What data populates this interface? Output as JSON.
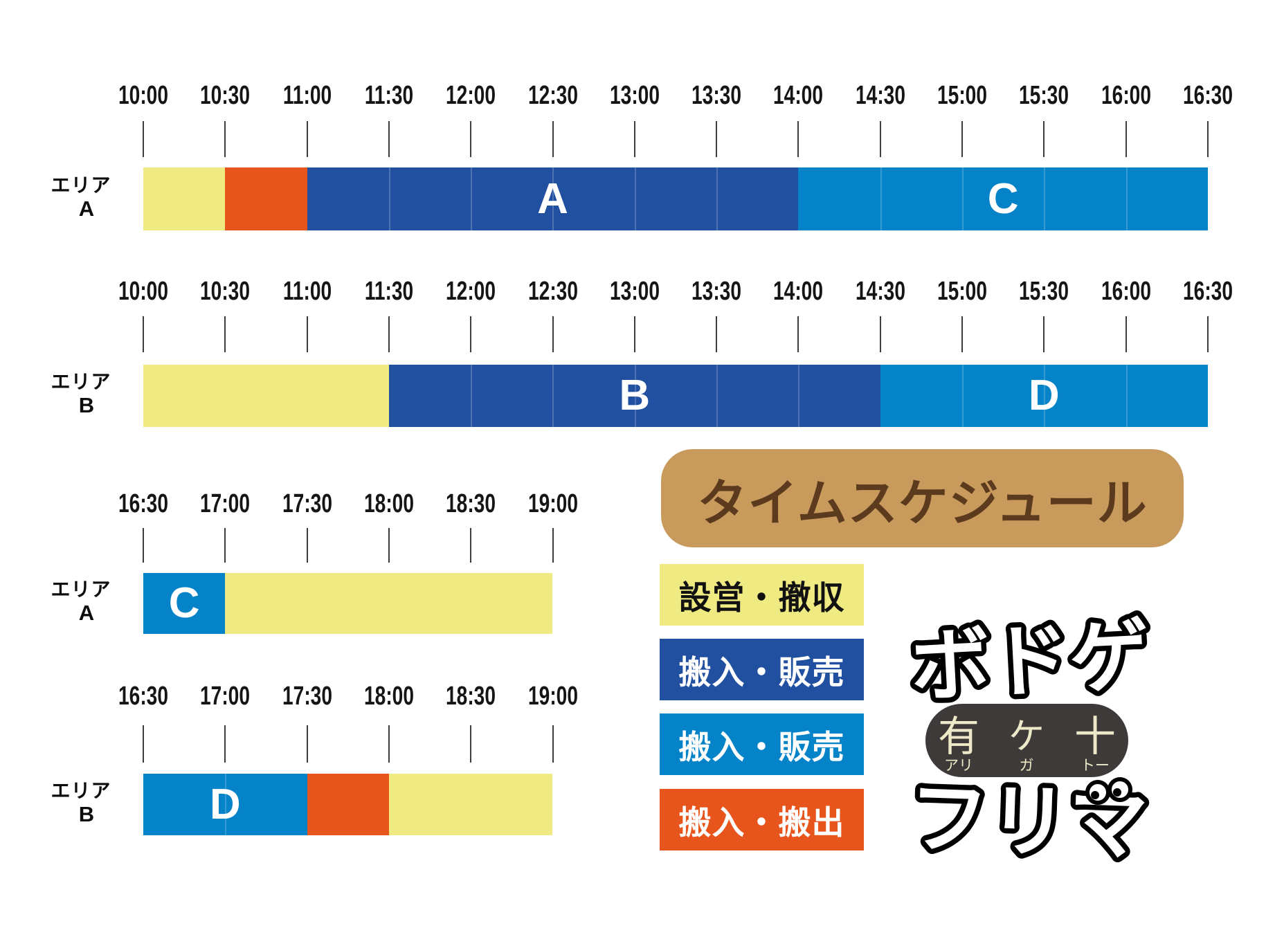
{
  "title": {
    "text": "タイムスケジュール",
    "box_color": "#C89B5D",
    "text_color": "#5C3A1D"
  },
  "colors": {
    "setup_teardown": "#EFEA82",
    "carry_sale_dark": "#2250A0",
    "carry_sale_light": "#0583C9",
    "carry_in_out": "#E8551C"
  },
  "legend": {
    "items": [
      {
        "key": "setup_teardown",
        "label": "設営・撤収",
        "bg": "#EFEA82",
        "fg": "#111111"
      },
      {
        "key": "carry_sale_dark",
        "label": "搬入・販売",
        "bg": "#2250A0",
        "fg": "#FFFFFF"
      },
      {
        "key": "carry_sale_light",
        "label": "搬入・販売",
        "bg": "#0583C9",
        "fg": "#FFFFFF"
      },
      {
        "key": "carry_in_out",
        "label": "搬入・搬出",
        "bg": "#E8551C",
        "fg": "#FFFFFF"
      }
    ]
  },
  "chart_data": {
    "type": "bar",
    "subtype": "horizontal-stacked-timeline (gantt schedule)",
    "axis_interval_minutes": 30,
    "timelines": [
      {
        "area_line1": "エリア",
        "area_line2": "A",
        "axis_ticks": [
          "10:00",
          "10:30",
          "11:00",
          "11:30",
          "12:00",
          "12:30",
          "13:00",
          "13:30",
          "14:00",
          "14:30",
          "15:00",
          "15:30",
          "16:00",
          "16:30"
        ],
        "segments": [
          {
            "start": "10:00",
            "end": "10:30",
            "category": "setup_teardown",
            "label": ""
          },
          {
            "start": "10:30",
            "end": "11:00",
            "category": "carry_in_out",
            "label": ""
          },
          {
            "start": "11:00",
            "end": "14:00",
            "category": "carry_sale_dark",
            "label": "A"
          },
          {
            "start": "14:00",
            "end": "16:30",
            "category": "carry_sale_light",
            "label": "C"
          }
        ]
      },
      {
        "area_line1": "エリア",
        "area_line2": "B",
        "axis_ticks": [
          "10:00",
          "10:30",
          "11:00",
          "11:30",
          "12:00",
          "12:30",
          "13:00",
          "13:30",
          "14:00",
          "14:30",
          "15:00",
          "15:30",
          "16:00",
          "16:30"
        ],
        "segments": [
          {
            "start": "10:00",
            "end": "11:30",
            "category": "setup_teardown",
            "label": ""
          },
          {
            "start": "11:30",
            "end": "14:30",
            "category": "carry_sale_dark",
            "label": "B"
          },
          {
            "start": "14:30",
            "end": "16:30",
            "category": "carry_sale_light",
            "label": "D"
          }
        ]
      },
      {
        "area_line1": "エリア",
        "area_line2": "A",
        "axis_ticks": [
          "16:30",
          "17:00",
          "17:30",
          "18:00",
          "18:30",
          "19:00"
        ],
        "segments": [
          {
            "start": "16:30",
            "end": "17:00",
            "category": "carry_sale_light",
            "label": "C"
          },
          {
            "start": "17:00",
            "end": "19:00",
            "category": "setup_teardown",
            "label": ""
          }
        ]
      },
      {
        "area_line1": "エリア",
        "area_line2": "B",
        "axis_ticks": [
          "16:30",
          "17:00",
          "17:30",
          "18:00",
          "18:30",
          "19:00"
        ],
        "segments": [
          {
            "start": "16:30",
            "end": "17:30",
            "category": "carry_sale_light",
            "label": "D"
          },
          {
            "start": "17:30",
            "end": "18:00",
            "category": "carry_in_out",
            "label": ""
          },
          {
            "start": "18:00",
            "end": "19:00",
            "category": "setup_teardown",
            "label": ""
          }
        ]
      }
    ]
  },
  "logo": {
    "line1": "ボドゲ",
    "main": [
      "有",
      "ケ",
      "十"
    ],
    "furigana": [
      "アリ",
      "ガ",
      "トー"
    ],
    "line3": "フリマ",
    "pill_bg": "#3E3A39",
    "pill_fg": "#EDE9C8"
  }
}
